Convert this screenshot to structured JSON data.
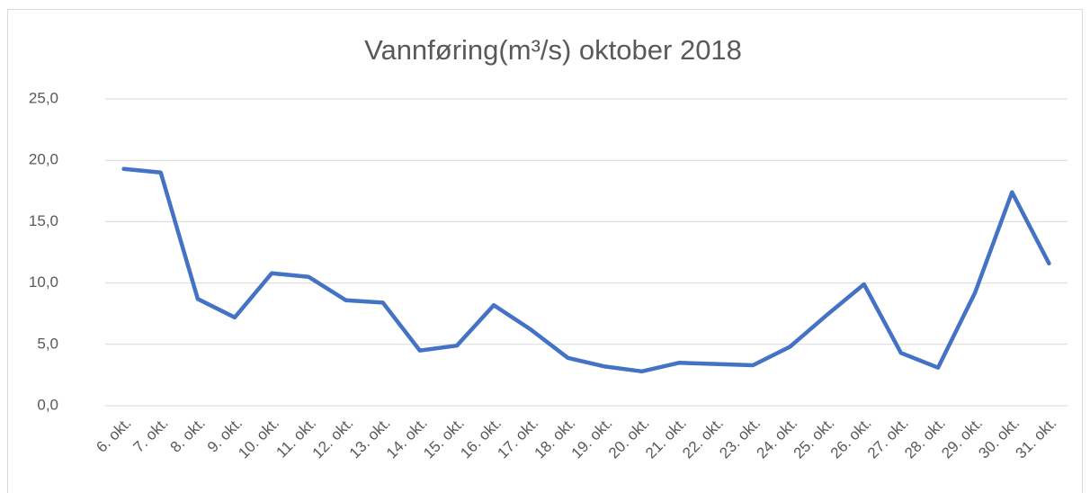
{
  "chart_data": {
    "type": "line",
    "title": "Vannføring(m³/s) oktober 2018",
    "categories": [
      "6. okt.",
      "7. okt.",
      "8. okt.",
      "9. okt.",
      "10. okt.",
      "11. okt.",
      "12. okt.",
      "13. okt.",
      "14. okt.",
      "15. okt.",
      "16. okt.",
      "17. okt.",
      "18. okt.",
      "19. okt.",
      "20. okt.",
      "21. okt.",
      "22. okt.",
      "23. okt.",
      "24. okt.",
      "25. okt.",
      "26. okt.",
      "27. okt.",
      "28. okt.",
      "29. okt.",
      "30. okt.",
      "31. okt."
    ],
    "values": [
      19.3,
      19.0,
      8.7,
      7.2,
      10.8,
      10.5,
      8.6,
      8.4,
      4.5,
      4.9,
      8.2,
      6.2,
      3.9,
      3.2,
      2.8,
      3.5,
      3.4,
      3.3,
      4.8,
      7.4,
      9.9,
      4.3,
      3.1,
      9.2,
      17.4,
      11.6
    ],
    "color": "#4472c4",
    "ylim": [
      0,
      25
    ],
    "yticks": [
      {
        "value": 0,
        "label": "0,0"
      },
      {
        "value": 5,
        "label": "5,0"
      },
      {
        "value": 10,
        "label": "10,0"
      },
      {
        "value": 15,
        "label": "15,0"
      },
      {
        "value": 20,
        "label": "20,0"
      },
      {
        "value": 25,
        "label": "25,0"
      }
    ],
    "grid": true
  }
}
